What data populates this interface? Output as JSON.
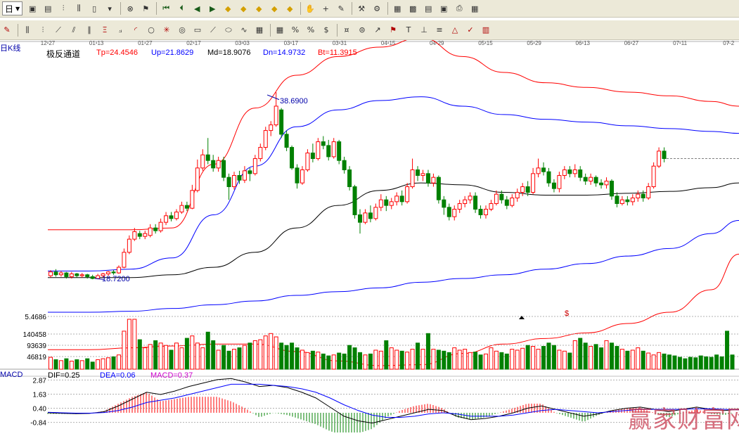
{
  "toolbar_top": {
    "period_value": "日",
    "icons": [
      "window-icon",
      "doc-icon",
      "candle-icon",
      "bar-icon",
      "candle-alt-icon",
      "dropdown-icon",
      "clear-icon",
      "flag-icon",
      "first-icon",
      "prev-icon",
      "back-icon",
      "forward-icon",
      "zoom-in-icon",
      "zoom-out-icon",
      "up-icon",
      "down-icon",
      "left-icon",
      "hand-icon",
      "cross-icon",
      "draw-icon",
      "tools-icon",
      "settings-icon",
      "calendar-icon",
      "calc-icon",
      "notes-icon",
      "save-icon",
      "print-icon",
      "grid-icon"
    ]
  },
  "toolbar_draw": {
    "icons": [
      "pen-icon",
      "hline-icon",
      "vline-icon",
      "trend-icon",
      "channel-icon",
      "parallel-icon",
      "fib-icon",
      "fan-icon",
      "arc-icon",
      "circle-icon",
      "gann-icon",
      "cycle-icon",
      "box-icon",
      "speed-icon",
      "ellipse-icon",
      "wave-icon",
      "rect-icon",
      "grid-draw-icon",
      "percent-icon",
      "pct-icon",
      "money-icon",
      "coin-icon",
      "gold-icon",
      "arrow-icon",
      "flag-draw-icon",
      "text-icon",
      "axis-icon",
      "line2-icon",
      "triangle-icon",
      "mark-icon",
      "stat-icon"
    ],
    "labels": [
      "%",
      "%"
    ]
  },
  "chart_data": {
    "type": "candlestick",
    "period_label": "日K线",
    "x_dates": [
      "12-27",
      "01-13",
      "01-27",
      "02-17",
      "03-03",
      "03-17",
      "03-31",
      "04-15",
      "04-29",
      "05-15",
      "05-29",
      "06-13",
      "06-27",
      "07-11",
      "07-2"
    ],
    "indicator": {
      "name": "极反通道",
      "values": [
        {
          "label": "Tp=24.4546",
          "color": "#ff0000"
        },
        {
          "label": "Up=21.8629",
          "color": "#0000ff"
        },
        {
          "label": "Md=18.9076",
          "color": "#000000"
        },
        {
          "label": "Dn=14.9732",
          "color": "#0000ff"
        },
        {
          "label": "Bt=11.3915",
          "color": "#ff0000"
        }
      ]
    },
    "annotations": {
      "high": "38.6900",
      "low": "18.7200"
    },
    "price_range": [
      14,
      42
    ],
    "candles": [
      {
        "o": 19.1,
        "c": 19.5,
        "h": 19.7,
        "l": 18.9
      },
      {
        "o": 19.5,
        "c": 19.2,
        "h": 19.8,
        "l": 19.0
      },
      {
        "o": 19.2,
        "c": 19.4,
        "h": 19.6,
        "l": 19.0
      },
      {
        "o": 19.4,
        "c": 19.0,
        "h": 19.5,
        "l": 18.8
      },
      {
        "o": 19.0,
        "c": 19.3,
        "h": 19.5,
        "l": 18.8
      },
      {
        "o": 19.3,
        "c": 19.1,
        "h": 19.4,
        "l": 18.9
      },
      {
        "o": 19.1,
        "c": 19.2,
        "h": 19.4,
        "l": 18.9
      },
      {
        "o": 19.2,
        "c": 19.0,
        "h": 19.3,
        "l": 18.8
      },
      {
        "o": 19.0,
        "c": 18.8,
        "h": 19.2,
        "l": 18.72
      },
      {
        "o": 18.8,
        "c": 19.1,
        "h": 19.3,
        "l": 18.72
      },
      {
        "o": 19.1,
        "c": 19.3,
        "h": 19.4,
        "l": 18.9
      },
      {
        "o": 19.3,
        "c": 19.5,
        "h": 19.6,
        "l": 19.1
      },
      {
        "o": 19.5,
        "c": 19.4,
        "h": 19.7,
        "l": 19.2
      },
      {
        "o": 19.4,
        "c": 20.0,
        "h": 20.2,
        "l": 19.3
      },
      {
        "o": 20.0,
        "c": 21.6,
        "h": 22.0,
        "l": 19.9
      },
      {
        "o": 21.6,
        "c": 23.0,
        "h": 23.4,
        "l": 21.4
      },
      {
        "o": 23.0,
        "c": 23.8,
        "h": 24.2,
        "l": 22.8
      },
      {
        "o": 23.6,
        "c": 23.3,
        "h": 23.9,
        "l": 23.0
      },
      {
        "o": 23.3,
        "c": 23.6,
        "h": 23.9,
        "l": 23.0
      },
      {
        "o": 23.4,
        "c": 24.2,
        "h": 24.6,
        "l": 23.2
      },
      {
        "o": 24.2,
        "c": 23.9,
        "h": 24.6,
        "l": 23.6
      },
      {
        "o": 23.9,
        "c": 24.8,
        "h": 25.2,
        "l": 23.7
      },
      {
        "o": 24.8,
        "c": 25.5,
        "h": 25.9,
        "l": 24.5
      },
      {
        "o": 25.5,
        "c": 25.2,
        "h": 25.9,
        "l": 24.9
      },
      {
        "o": 25.2,
        "c": 25.9,
        "h": 26.2,
        "l": 25.0
      },
      {
        "o": 25.9,
        "c": 26.6,
        "h": 27.0,
        "l": 25.7
      },
      {
        "o": 26.6,
        "c": 26.3,
        "h": 27.0,
        "l": 26.0
      },
      {
        "o": 26.3,
        "c": 28.2,
        "h": 28.8,
        "l": 26.2
      },
      {
        "o": 28.2,
        "c": 30.6,
        "h": 31.5,
        "l": 28.0
      },
      {
        "o": 30.6,
        "c": 32.0,
        "h": 32.6,
        "l": 30.3
      },
      {
        "o": 32.0,
        "c": 31.4,
        "h": 33.8,
        "l": 31.0
      },
      {
        "o": 31.4,
        "c": 30.6,
        "h": 32.0,
        "l": 30.2
      },
      {
        "o": 30.6,
        "c": 31.4,
        "h": 31.8,
        "l": 30.2
      },
      {
        "o": 31.4,
        "c": 29.6,
        "h": 31.8,
        "l": 29.2
      },
      {
        "o": 29.6,
        "c": 28.6,
        "h": 30.0,
        "l": 27.2
      },
      {
        "o": 28.6,
        "c": 29.8,
        "h": 30.2,
        "l": 28.3
      },
      {
        "o": 29.8,
        "c": 29.3,
        "h": 30.3,
        "l": 28.9
      },
      {
        "o": 29.3,
        "c": 30.3,
        "h": 30.8,
        "l": 29.0
      },
      {
        "o": 30.3,
        "c": 30.0,
        "h": 30.6,
        "l": 29.2
      },
      {
        "o": 30.0,
        "c": 31.6,
        "h": 32.0,
        "l": 29.8
      },
      {
        "o": 31.6,
        "c": 32.8,
        "h": 33.2,
        "l": 31.3
      },
      {
        "o": 32.8,
        "c": 34.6,
        "h": 35.0,
        "l": 32.5
      },
      {
        "o": 34.6,
        "c": 35.2,
        "h": 35.6,
        "l": 34.0
      },
      {
        "o": 35.2,
        "c": 37.2,
        "h": 38.69,
        "l": 35.0
      },
      {
        "o": 36.8,
        "c": 34.2,
        "h": 37.0,
        "l": 33.8
      },
      {
        "o": 34.2,
        "c": 32.8,
        "h": 34.6,
        "l": 32.4
      },
      {
        "o": 32.8,
        "c": 30.6,
        "h": 33.0,
        "l": 30.4
      },
      {
        "o": 30.6,
        "c": 29.0,
        "h": 31.0,
        "l": 28.4
      },
      {
        "o": 29.0,
        "c": 30.4,
        "h": 30.8,
        "l": 28.8
      },
      {
        "o": 30.4,
        "c": 32.2,
        "h": 32.6,
        "l": 30.2
      },
      {
        "o": 32.2,
        "c": 31.6,
        "h": 33.2,
        "l": 31.2
      },
      {
        "o": 31.6,
        "c": 33.4,
        "h": 33.8,
        "l": 31.4
      },
      {
        "o": 33.4,
        "c": 33.0,
        "h": 34.0,
        "l": 32.6
      },
      {
        "o": 33.0,
        "c": 31.8,
        "h": 33.6,
        "l": 31.4
      },
      {
        "o": 31.8,
        "c": 33.4,
        "h": 33.8,
        "l": 31.6
      },
      {
        "o": 33.4,
        "c": 31.4,
        "h": 33.6,
        "l": 31.0
      },
      {
        "o": 31.4,
        "c": 30.4,
        "h": 31.8,
        "l": 30.0
      },
      {
        "o": 30.4,
        "c": 28.6,
        "h": 30.8,
        "l": 28.2
      },
      {
        "o": 28.6,
        "c": 25.6,
        "h": 28.8,
        "l": 25.2
      },
      {
        "o": 25.6,
        "c": 24.8,
        "h": 26.2,
        "l": 23.6
      },
      {
        "o": 24.8,
        "c": 25.8,
        "h": 26.2,
        "l": 24.6
      },
      {
        "o": 25.8,
        "c": 25.2,
        "h": 26.6,
        "l": 24.8
      },
      {
        "o": 25.2,
        "c": 26.4,
        "h": 26.8,
        "l": 25.0
      },
      {
        "o": 26.4,
        "c": 27.2,
        "h": 27.8,
        "l": 26.0
      },
      {
        "o": 27.2,
        "c": 26.6,
        "h": 27.6,
        "l": 26.0
      },
      {
        "o": 26.6,
        "c": 27.0,
        "h": 27.4,
        "l": 26.2
      },
      {
        "o": 27.0,
        "c": 27.6,
        "h": 28.0,
        "l": 26.6
      },
      {
        "o": 27.6,
        "c": 27.0,
        "h": 28.2,
        "l": 26.6
      },
      {
        "o": 27.0,
        "c": 28.6,
        "h": 29.0,
        "l": 26.8
      },
      {
        "o": 28.6,
        "c": 30.4,
        "h": 31.6,
        "l": 28.4
      },
      {
        "o": 30.4,
        "c": 29.8,
        "h": 30.8,
        "l": 29.2
      },
      {
        "o": 29.8,
        "c": 30.0,
        "h": 30.4,
        "l": 29.2
      },
      {
        "o": 30.0,
        "c": 29.0,
        "h": 30.4,
        "l": 28.6
      },
      {
        "o": 29.0,
        "c": 29.6,
        "h": 30.0,
        "l": 28.6
      },
      {
        "o": 29.6,
        "c": 27.2,
        "h": 29.8,
        "l": 26.8
      },
      {
        "o": 27.2,
        "c": 26.4,
        "h": 27.6,
        "l": 25.6
      },
      {
        "o": 26.4,
        "c": 25.4,
        "h": 26.8,
        "l": 25.0
      },
      {
        "o": 25.4,
        "c": 26.2,
        "h": 26.6,
        "l": 25.0
      },
      {
        "o": 26.2,
        "c": 26.8,
        "h": 27.2,
        "l": 25.8
      },
      {
        "o": 26.8,
        "c": 27.2,
        "h": 27.6,
        "l": 26.4
      },
      {
        "o": 27.2,
        "c": 27.6,
        "h": 28.0,
        "l": 26.8
      },
      {
        "o": 27.6,
        "c": 26.2,
        "h": 28.0,
        "l": 25.8
      },
      {
        "o": 26.2,
        "c": 25.6,
        "h": 26.6,
        "l": 25.2
      },
      {
        "o": 25.6,
        "c": 26.2,
        "h": 26.6,
        "l": 25.2
      },
      {
        "o": 26.2,
        "c": 26.8,
        "h": 27.2,
        "l": 26.0
      },
      {
        "o": 26.8,
        "c": 27.8,
        "h": 28.2,
        "l": 26.6
      },
      {
        "o": 27.8,
        "c": 27.2,
        "h": 28.2,
        "l": 26.8
      },
      {
        "o": 27.2,
        "c": 26.6,
        "h": 27.6,
        "l": 26.2
      },
      {
        "o": 26.6,
        "c": 27.4,
        "h": 27.8,
        "l": 26.4
      },
      {
        "o": 27.4,
        "c": 28.0,
        "h": 28.4,
        "l": 27.0
      },
      {
        "o": 28.0,
        "c": 28.6,
        "h": 29.0,
        "l": 27.6
      },
      {
        "o": 28.6,
        "c": 28.0,
        "h": 29.2,
        "l": 27.6
      },
      {
        "o": 28.0,
        "c": 30.0,
        "h": 30.6,
        "l": 27.8
      },
      {
        "o": 30.0,
        "c": 30.6,
        "h": 31.6,
        "l": 29.6
      },
      {
        "o": 30.6,
        "c": 30.2,
        "h": 31.2,
        "l": 29.8
      },
      {
        "o": 30.2,
        "c": 29.0,
        "h": 30.6,
        "l": 28.6
      },
      {
        "o": 29.0,
        "c": 28.4,
        "h": 29.4,
        "l": 28.0
      },
      {
        "o": 28.4,
        "c": 29.8,
        "h": 30.2,
        "l": 28.0
      },
      {
        "o": 29.8,
        "c": 30.4,
        "h": 30.8,
        "l": 29.4
      },
      {
        "o": 30.4,
        "c": 30.0,
        "h": 30.8,
        "l": 29.6
      },
      {
        "o": 30.0,
        "c": 30.4,
        "h": 31.0,
        "l": 29.6
      },
      {
        "o": 30.4,
        "c": 29.6,
        "h": 30.8,
        "l": 29.2
      },
      {
        "o": 29.6,
        "c": 29.2,
        "h": 30.0,
        "l": 28.8
      },
      {
        "o": 29.2,
        "c": 29.6,
        "h": 30.0,
        "l": 28.8
      },
      {
        "o": 29.6,
        "c": 29.0,
        "h": 29.8,
        "l": 28.6
      },
      {
        "o": 29.0,
        "c": 28.8,
        "h": 29.4,
        "l": 28.4
      },
      {
        "o": 28.8,
        "c": 29.2,
        "h": 29.6,
        "l": 28.4
      },
      {
        "o": 29.2,
        "c": 27.6,
        "h": 29.4,
        "l": 27.2
      },
      {
        "o": 27.6,
        "c": 26.8,
        "h": 28.0,
        "l": 26.4
      },
      {
        "o": 26.8,
        "c": 27.2,
        "h": 27.6,
        "l": 26.6
      },
      {
        "o": 27.2,
        "c": 27.0,
        "h": 27.6,
        "l": 26.6
      },
      {
        "o": 27.0,
        "c": 27.4,
        "h": 27.8,
        "l": 26.6
      },
      {
        "o": 27.4,
        "c": 27.8,
        "h": 28.2,
        "l": 27.0
      },
      {
        "o": 27.8,
        "c": 27.4,
        "h": 28.2,
        "l": 27.0
      },
      {
        "o": 27.4,
        "c": 28.6,
        "h": 29.0,
        "l": 27.2
      },
      {
        "o": 28.6,
        "c": 30.8,
        "h": 31.2,
        "l": 28.4
      },
      {
        "o": 30.8,
        "c": 32.4,
        "h": 32.8,
        "l": 30.6
      },
      {
        "o": 32.4,
        "c": 31.6,
        "h": 32.8,
        "l": 31.2
      }
    ],
    "channel": {
      "x": [
        0,
        0.06,
        0.12,
        0.18,
        0.24,
        0.3,
        0.36,
        0.42,
        0.48,
        0.54,
        0.6,
        0.66,
        0.72,
        0.78,
        0.84,
        0.9,
        0.96,
        1.0
      ],
      "tp": [
        24.0,
        24.0,
        24.0,
        24.2,
        31.0,
        37.0,
        40.5,
        42.5,
        43.5,
        44.5,
        42.5,
        40.8,
        39.7,
        39.2,
        38.7,
        38.3,
        37.7,
        37.2
      ],
      "up": [
        19.6,
        19.6,
        19.8,
        21.0,
        25.6,
        30.8,
        35.0,
        36.8,
        37.8,
        38.2,
        37.2,
        36.3,
        35.8,
        35.5,
        35.1,
        34.8,
        34.5,
        34.3
      ],
      "md": [
        18.9,
        18.9,
        18.9,
        19.2,
        20.0,
        21.6,
        24.2,
        26.6,
        28.2,
        29.0,
        28.8,
        28.0,
        27.7,
        27.7,
        27.9,
        28.1,
        28.5,
        29.0
      ],
      "dn": [
        15.2,
        15.2,
        15.3,
        15.6,
        16.0,
        16.4,
        17.0,
        17.4,
        17.8,
        18.4,
        18.8,
        19.2,
        19.8,
        20.4,
        21.2,
        22.0,
        23.6,
        25.0
      ],
      "bt": [
        11.2,
        11.2,
        11.4,
        11.6,
        11.8,
        11.8,
        11.0,
        10.0,
        9.5,
        9.6,
        10.8,
        11.8,
        12.4,
        13.0,
        14.0,
        15.2,
        17.6,
        21.4
      ]
    },
    "volume": {
      "levels": [
        "5.4686",
        "140458",
        "93639",
        "46819"
      ],
      "marker": "$",
      "values": [
        0.25,
        0.2,
        0.18,
        0.22,
        0.17,
        0.2,
        0.18,
        0.22,
        0.15,
        0.2,
        0.22,
        0.24,
        0.26,
        0.3,
        0.8,
        1.05,
        1.05,
        0.62,
        0.45,
        0.52,
        0.6,
        0.55,
        0.5,
        0.4,
        0.55,
        0.45,
        0.65,
        0.7,
        0.55,
        0.45,
        0.78,
        0.6,
        0.4,
        0.5,
        0.38,
        0.42,
        0.45,
        0.5,
        0.55,
        0.6,
        0.62,
        0.7,
        0.75,
        0.68,
        0.55,
        0.5,
        0.55,
        0.45,
        0.4,
        0.35,
        0.38,
        0.36,
        0.32,
        0.28,
        0.3,
        0.34,
        0.32,
        0.5,
        0.45,
        0.35,
        0.3,
        0.32,
        0.4,
        0.38,
        0.6,
        0.45,
        0.4,
        0.38,
        0.36,
        0.42,
        0.55,
        0.42,
        0.75,
        0.42,
        0.4,
        0.38,
        0.35,
        0.45,
        0.4,
        0.42,
        0.35,
        0.36,
        0.3,
        0.32,
        0.45,
        0.38,
        0.35,
        0.32,
        0.42,
        0.4,
        0.44,
        0.5,
        0.48,
        0.42,
        0.48,
        0.55,
        0.5,
        0.4,
        0.38,
        0.34,
        0.6,
        0.65,
        0.55,
        0.48,
        0.52,
        0.45,
        0.6,
        0.55,
        0.48,
        0.42,
        0.38,
        0.4,
        0.45,
        0.38,
        0.34,
        0.3,
        0.35,
        0.32,
        0.3,
        0.28,
        0.25,
        0.22,
        0.25,
        0.24,
        0.28,
        0.26,
        0.25,
        0.3,
        0.26,
        0.8,
        0.3
      ]
    },
    "macd": {
      "title": "MACD",
      "dif_label": "DIF=0.25",
      "dea_label": "DEA=0.06",
      "macd_label": "MACD=0.37",
      "y_ticks": [
        "2.87",
        "1.63",
        "0.40",
        "-0.84"
      ],
      "range": [
        -1.6,
        3.2
      ],
      "dif": [
        0.0,
        -0.05,
        -0.08,
        -0.05,
        0.1,
        0.6,
        1.2,
        1.8,
        1.6,
        1.9,
        2.3,
        2.6,
        2.9,
        3.0,
        2.7,
        2.3,
        2.4,
        2.2,
        1.8,
        1.3,
        0.5,
        -0.3,
        -0.7,
        -0.9,
        -0.6,
        -0.3,
        0.0,
        0.3,
        0.2,
        -0.3,
        -0.6,
        -0.5,
        -0.3,
        0.0,
        0.4,
        0.6,
        0.3,
        0.0,
        -0.3,
        -0.1,
        0.2,
        0.4,
        0.5,
        0.3,
        0.1,
        0.3,
        0.5,
        0.3,
        0.2,
        0.3
      ],
      "dea": [
        0.05,
        0.0,
        -0.03,
        -0.03,
        0.02,
        0.2,
        0.5,
        0.9,
        1.1,
        1.3,
        1.6,
        1.9,
        2.2,
        2.5,
        2.5,
        2.5,
        2.4,
        2.3,
        2.1,
        1.8,
        1.3,
        0.7,
        0.2,
        -0.2,
        -0.4,
        -0.4,
        -0.3,
        -0.1,
        0.0,
        -0.1,
        -0.3,
        -0.3,
        -0.3,
        -0.2,
        0.0,
        0.2,
        0.3,
        0.2,
        0.1,
        0.0,
        0.1,
        0.2,
        0.3,
        0.3,
        0.3,
        0.3,
        0.35,
        0.35,
        0.3,
        0.25
      ]
    },
    "watermark": "赢家财富网"
  }
}
